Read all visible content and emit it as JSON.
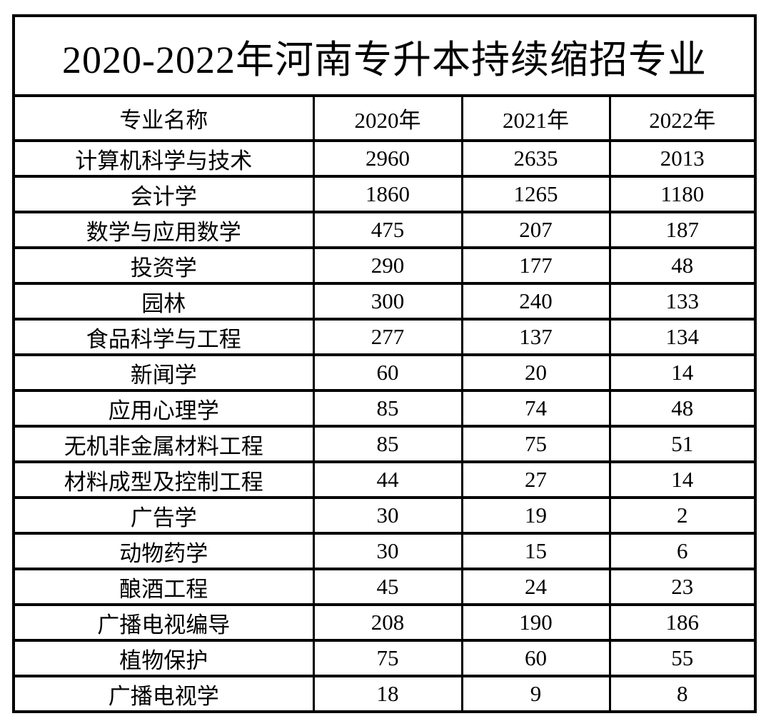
{
  "colors": {
    "background": "#ffffff",
    "border": "#000000",
    "text": "#000000"
  },
  "chart_data": {
    "type": "table",
    "title": "2020-2022年河南专升本持续缩招专业",
    "columns": [
      "专业名称",
      "2020年",
      "2021年",
      "2022年"
    ],
    "rows": [
      [
        "计算机科学与技术",
        2960,
        2635,
        2013
      ],
      [
        "会计学",
        1860,
        1265,
        1180
      ],
      [
        "数学与应用数学",
        475,
        207,
        187
      ],
      [
        "投资学",
        290,
        177,
        48
      ],
      [
        "园林",
        300,
        240,
        133
      ],
      [
        "食品科学与工程",
        277,
        137,
        134
      ],
      [
        "新闻学",
        60,
        20,
        14
      ],
      [
        "应用心理学",
        85,
        74,
        48
      ],
      [
        "无机非金属材料工程",
        85,
        75,
        51
      ],
      [
        "材料成型及控制工程",
        44,
        27,
        14
      ],
      [
        "广告学",
        30,
        19,
        2
      ],
      [
        "动物药学",
        30,
        15,
        6
      ],
      [
        "酿酒工程",
        45,
        24,
        23
      ],
      [
        "广播电视编导",
        208,
        190,
        186
      ],
      [
        "植物保护",
        75,
        60,
        55
      ],
      [
        "广播电视学",
        18,
        9,
        8
      ]
    ]
  }
}
